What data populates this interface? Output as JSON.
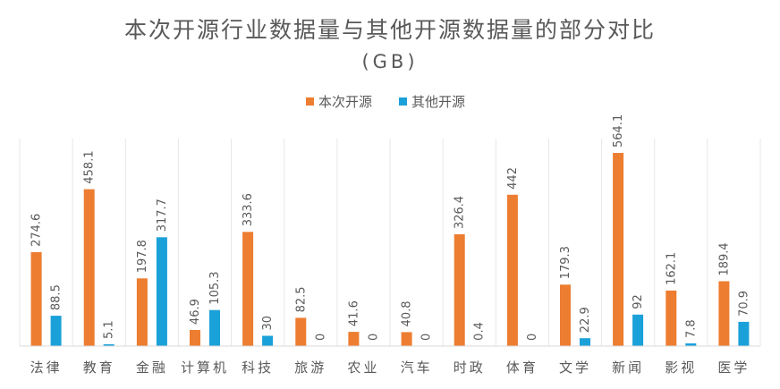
{
  "chart_data": {
    "type": "bar",
    "title": "本次开源行业数据量与其他开源数据量的部分对比",
    "subtitle": "(GB)",
    "legend_position": "top-center",
    "grid": "vertical-category-separators",
    "categories": [
      "法律",
      "教育",
      "金融",
      "计算机",
      "科技",
      "旅游",
      "农业",
      "汽车",
      "时政",
      "体育",
      "文学",
      "新闻",
      "影视",
      "医学"
    ],
    "series": [
      {
        "name": "本次开源",
        "color": "#ED7D31",
        "values": [
          274.6,
          458.1,
          197.8,
          46.9,
          333.6,
          82.5,
          41.6,
          40.8,
          326.4,
          442,
          179.3,
          564.1,
          162.1,
          189.4
        ],
        "labels": [
          "274.6",
          "458.1",
          "197.8",
          "46.9",
          "333.6",
          "82.5",
          "41.6",
          "40.8",
          "326.4",
          "442",
          "179.3",
          "564.1",
          "162.1",
          "189.4"
        ]
      },
      {
        "name": "其他开源",
        "color": "#1BA1D9",
        "values": [
          88.5,
          5.1,
          317.7,
          105.3,
          30,
          0,
          0,
          0,
          0.4,
          0,
          22.9,
          92,
          7.8,
          70.9
        ],
        "labels": [
          "88.5",
          "5.1",
          "317.7",
          "105.3",
          "30",
          "0",
          "0",
          "0",
          "0.4",
          "0",
          "22.9",
          "92",
          "7.8",
          "70.9"
        ]
      }
    ],
    "ylim": [
      0,
      600
    ]
  }
}
